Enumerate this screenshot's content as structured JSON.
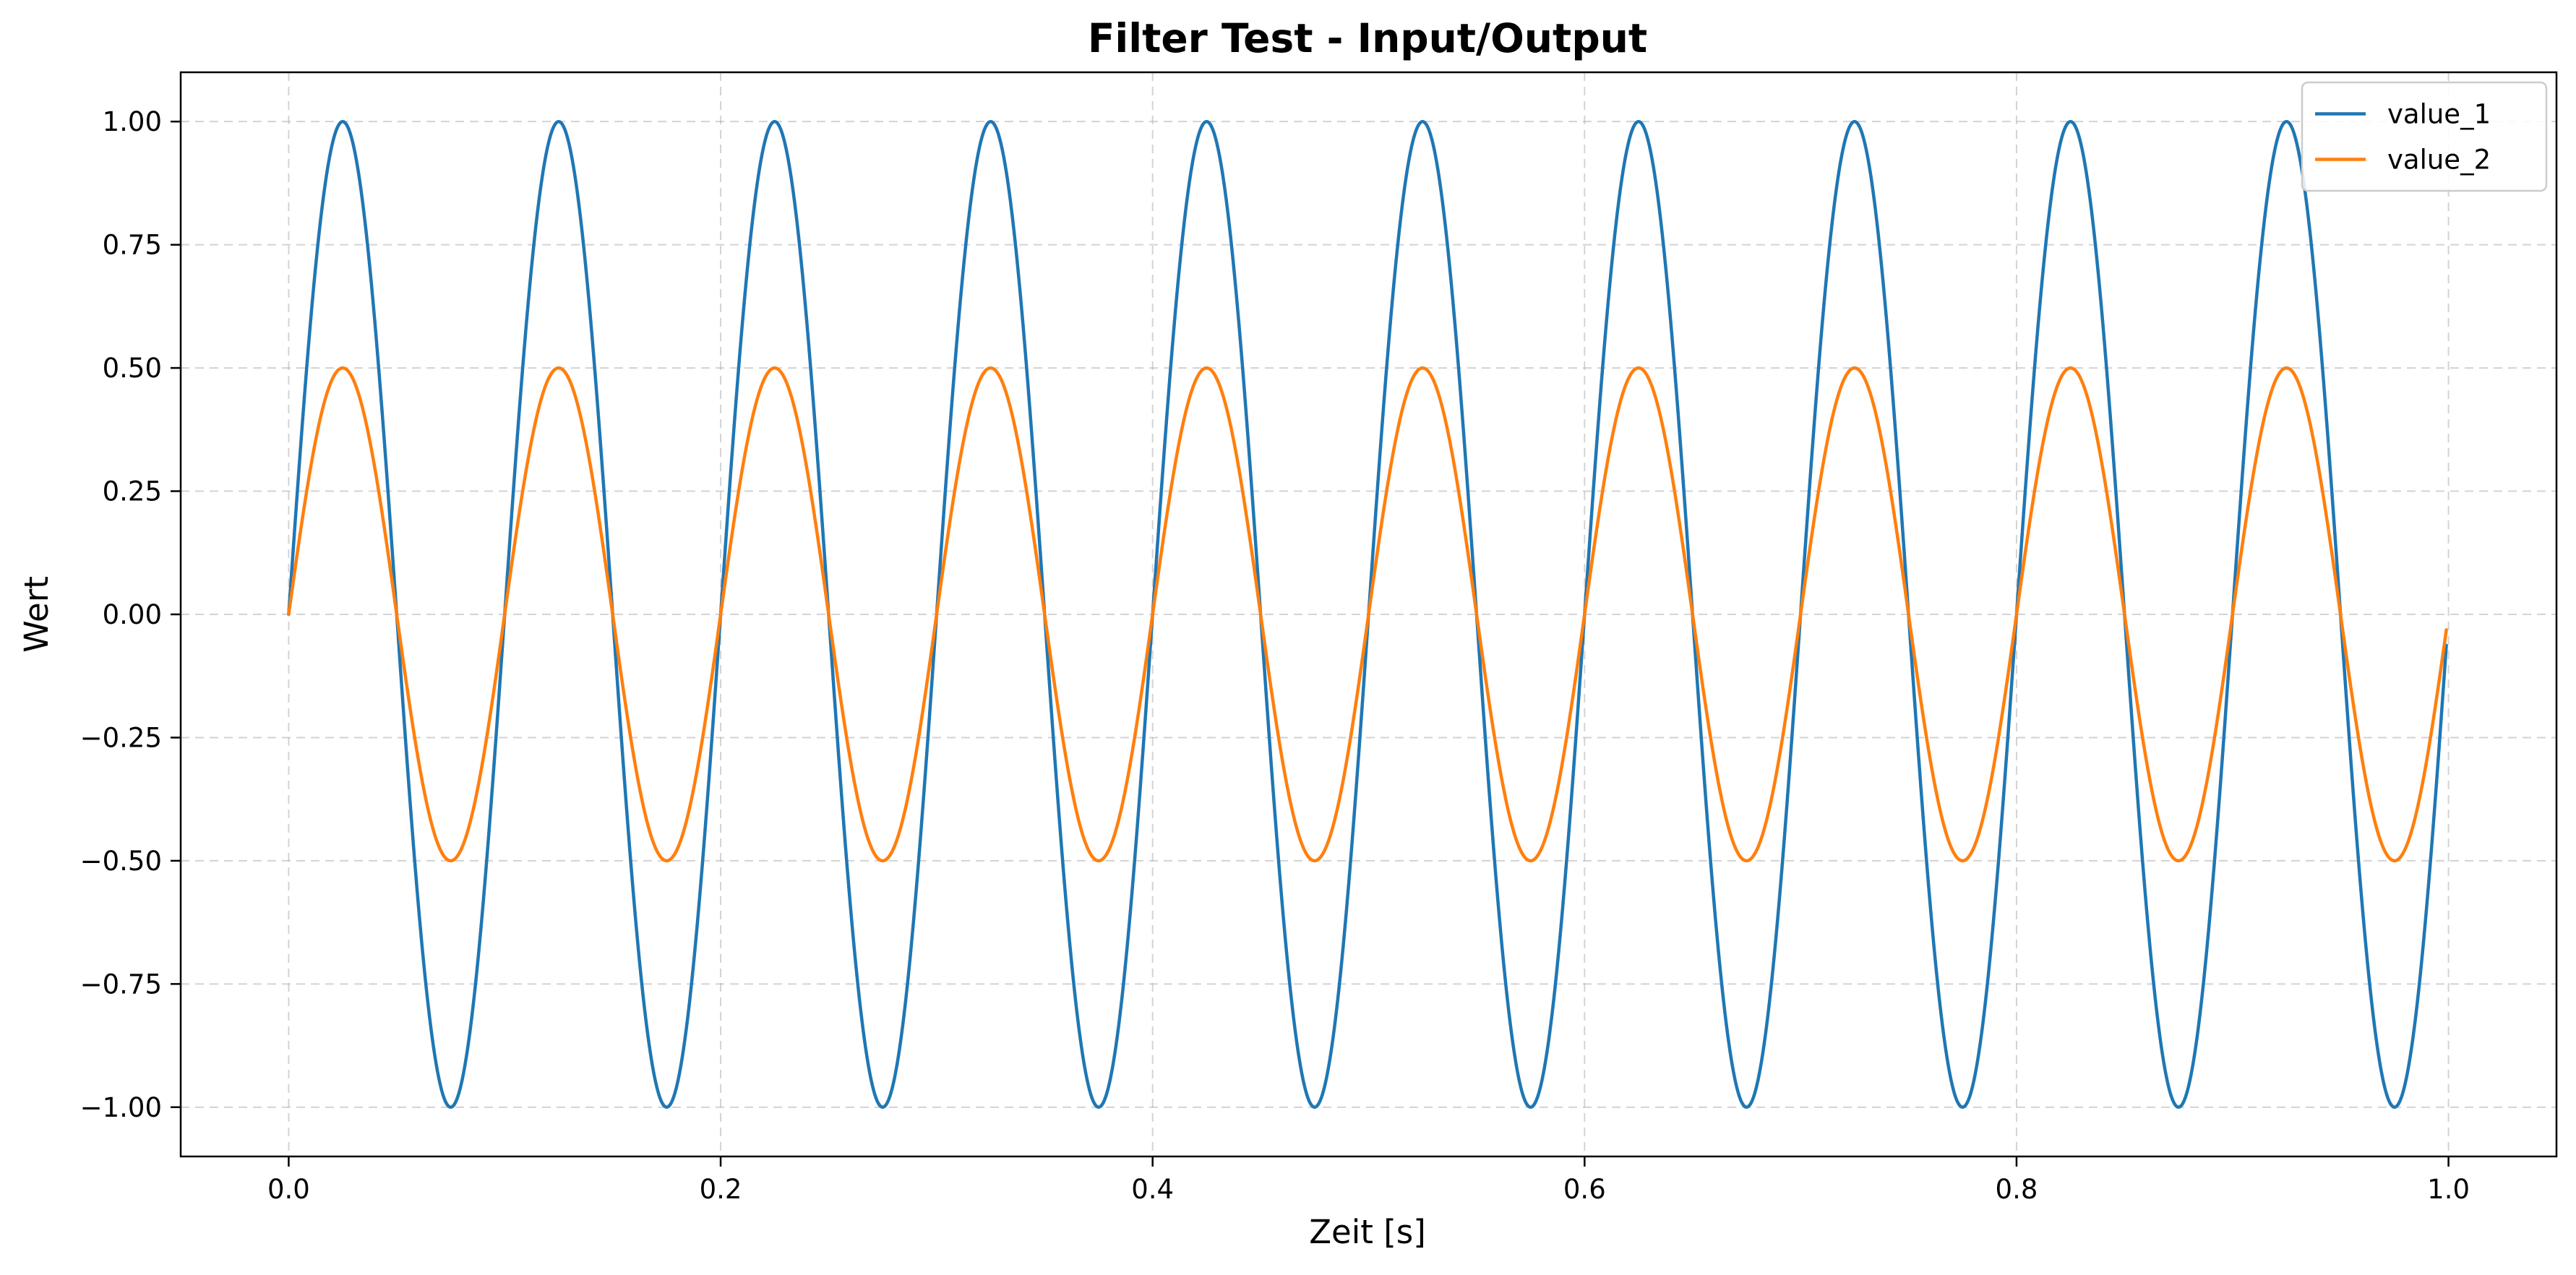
{
  "chart_data": {
    "type": "line",
    "title": "Filter Test - Input/Output",
    "xlabel": "Zeit [s]",
    "ylabel": "Wert",
    "xlim": [
      -0.05,
      1.05
    ],
    "ylim": [
      -1.1,
      1.1
    ],
    "xticks": [
      0.0,
      0.2,
      0.4,
      0.6,
      0.8,
      1.0
    ],
    "xtick_labels": [
      "0.0",
      "0.2",
      "0.4",
      "0.6",
      "0.8",
      "1.0"
    ],
    "yticks": [
      1.0,
      0.75,
      0.5,
      0.25,
      0.0,
      -0.25,
      -0.5,
      -0.75,
      -1.0
    ],
    "ytick_labels": [
      "1.00",
      "0.75",
      "0.50",
      "0.25",
      "0.00",
      "−0.25",
      "−0.50",
      "−0.75",
      "−1.00"
    ],
    "grid": true,
    "legend_position": "top-right",
    "x_range": [
      0.0,
      0.999
    ],
    "series": [
      {
        "name": "value_1",
        "color": "#1f77b4",
        "function": "sine",
        "amplitude": 1.0,
        "frequency_hz": 10
      },
      {
        "name": "value_2",
        "color": "#ff7f0e",
        "function": "sine",
        "amplitude": 0.5,
        "frequency_hz": 10
      }
    ]
  }
}
